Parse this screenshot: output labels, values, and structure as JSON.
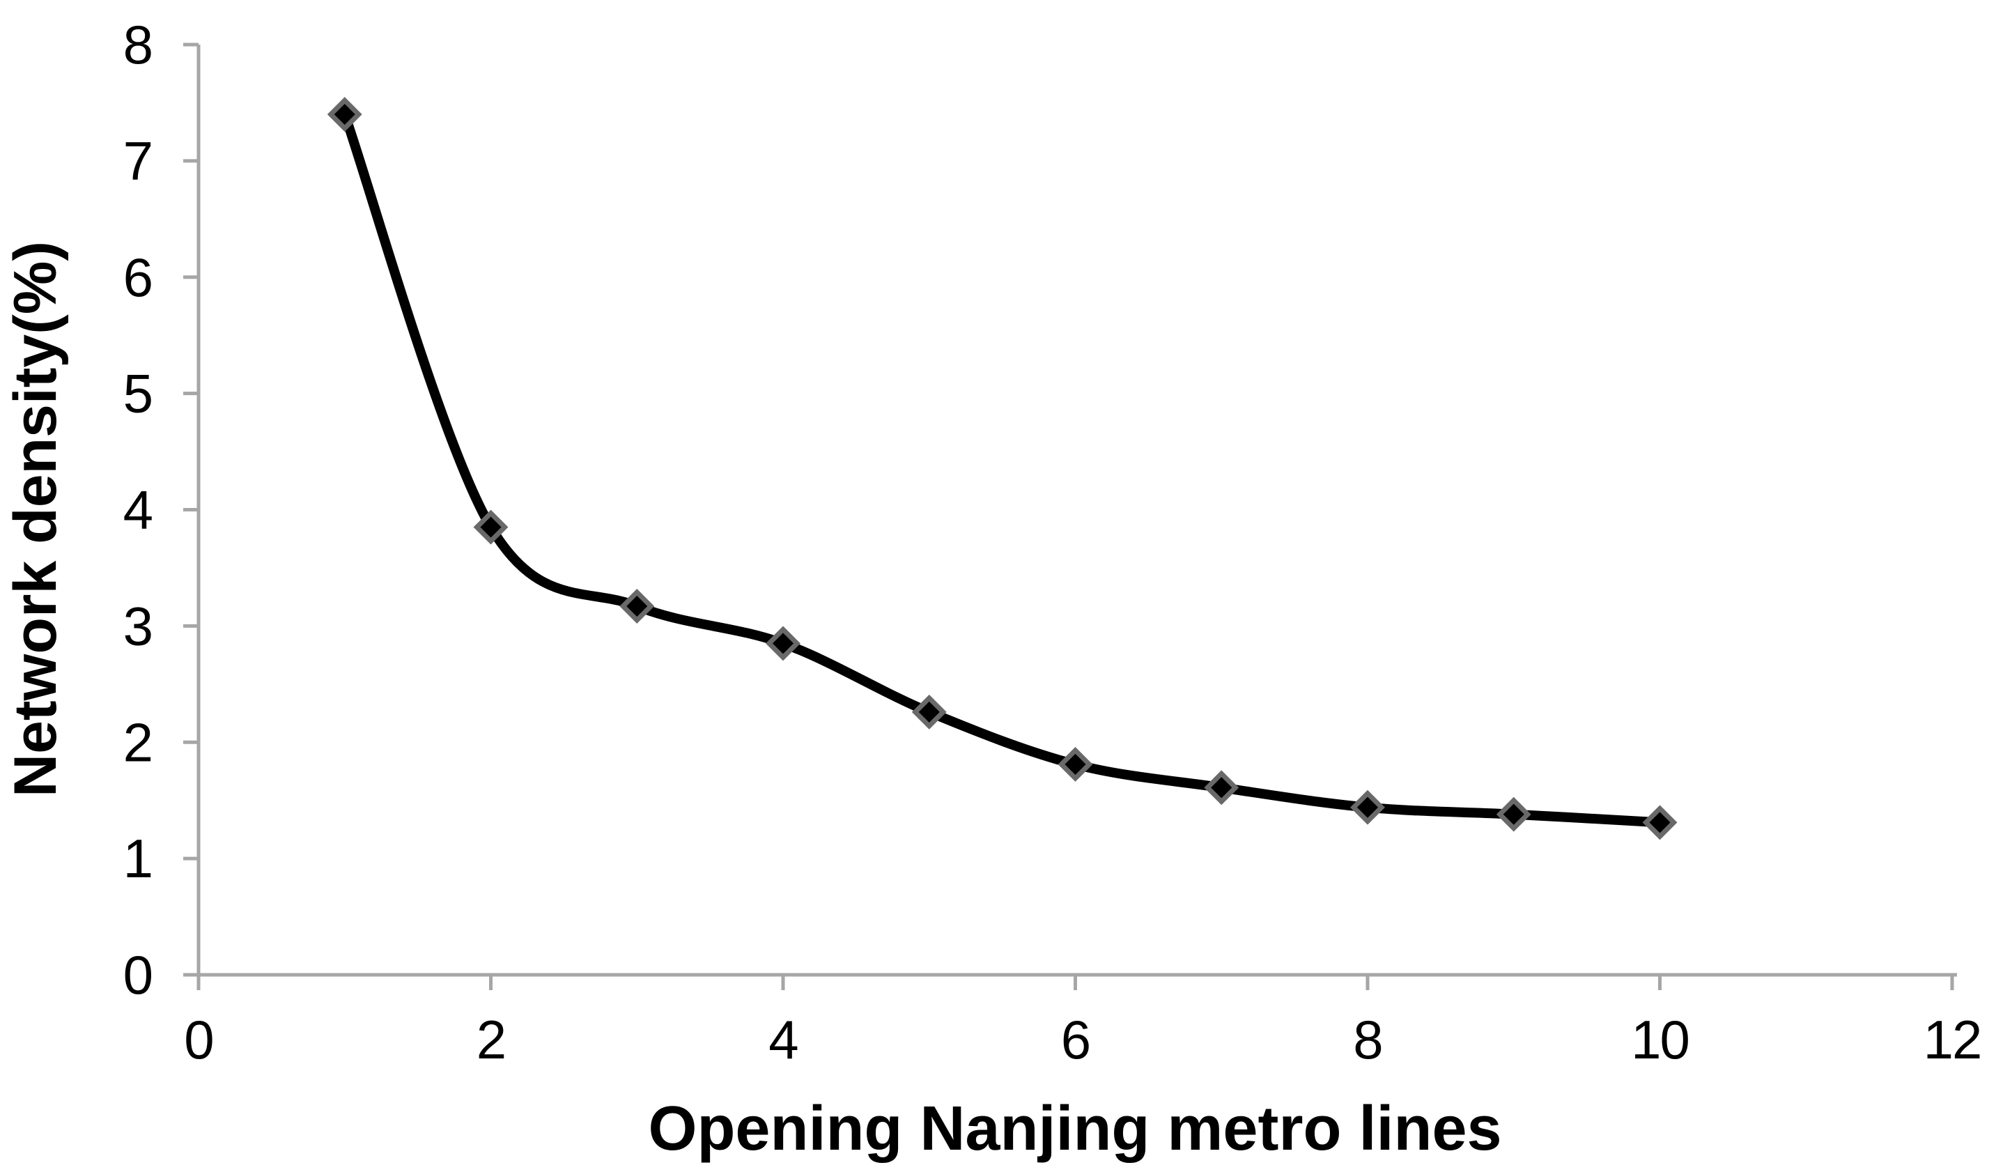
{
  "chart_data": {
    "type": "line",
    "title": "",
    "xlabel": "Opening Nanjing metro lines",
    "ylabel": "Network density(%)",
    "x": [
      1,
      2,
      3,
      4,
      5,
      6,
      7,
      8,
      9,
      10
    ],
    "values": [
      7.4,
      3.85,
      3.17,
      2.85,
      2.26,
      1.81,
      1.61,
      1.44,
      1.38,
      1.31
    ],
    "xlim": [
      0,
      12
    ],
    "ylim": [
      0,
      8
    ],
    "x_ticks": [
      "0",
      "2",
      "4",
      "6",
      "8",
      "10",
      "12"
    ],
    "y_ticks": [
      "0",
      "1",
      "2",
      "3",
      "4",
      "5",
      "6",
      "7",
      "8"
    ],
    "grid": false,
    "legend": "none",
    "marker": "diamond",
    "line_smooth": true
  },
  "style": {
    "background": "#ffffff",
    "axis_color": "#a6a6a6",
    "line_color": "#000000",
    "marker_fill": "#000000",
    "marker_border": "#696969",
    "text_color": "#000000"
  }
}
